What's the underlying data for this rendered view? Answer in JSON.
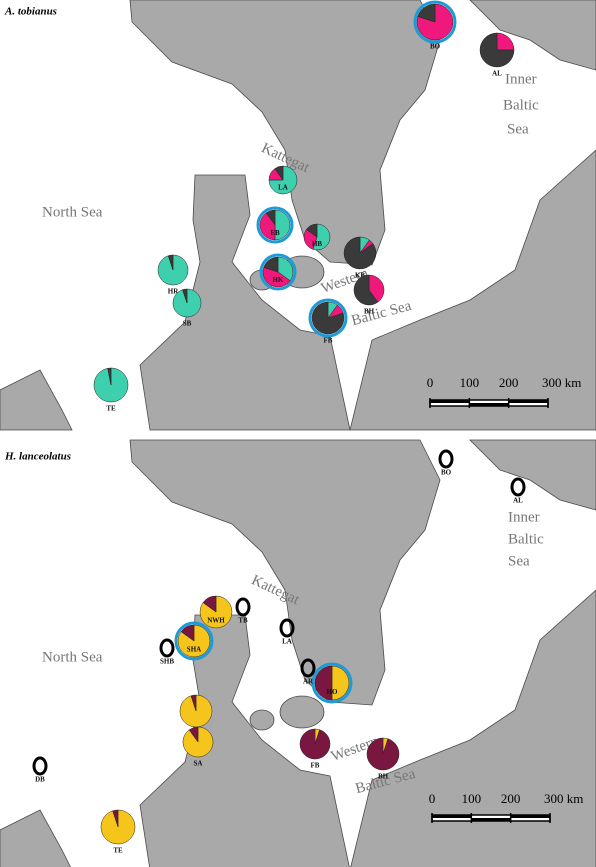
{
  "panels": [
    {
      "species": "A. tobianus",
      "colors": [
        "#3ecfae",
        "#f0187c",
        "#3a3a3a"
      ],
      "ring_color": "#1e9bd7",
      "labels": {
        "north_sea": "North Sea",
        "kattegat": "Kattegat",
        "inner": "Inner",
        "baltic": "Baltic",
        "sea": "Sea",
        "western": "Western",
        "baltic_sea": "Baltic Sea"
      },
      "scale_ticks": [
        0,
        100,
        200,
        {
          "value": 300,
          "label": "300 km"
        }
      ],
      "sites": [
        {
          "code": "BO",
          "values": [
            0,
            80,
            20
          ],
          "highlighted": true
        },
        {
          "code": "AL",
          "values": [
            0,
            25,
            75
          ],
          "highlighted": false
        },
        {
          "code": "LA",
          "values": [
            75,
            15,
            10
          ],
          "highlighted": false
        },
        {
          "code": "EB",
          "values": [
            50,
            40,
            10
          ],
          "highlighted": true
        },
        {
          "code": "HB",
          "values": [
            55,
            30,
            15
          ],
          "highlighted": false
        },
        {
          "code": "KB",
          "values": [
            10,
            5,
            85
          ],
          "highlighted": false
        },
        {
          "code": "HK",
          "values": [
            35,
            45,
            20
          ],
          "highlighted": true
        },
        {
          "code": "BH",
          "values": [
            0,
            40,
            60
          ],
          "highlighted": false
        },
        {
          "code": "FB",
          "values": [
            10,
            10,
            80
          ],
          "highlighted": true
        },
        {
          "code": "HR",
          "values": [
            95,
            0,
            5
          ],
          "highlighted": false
        },
        {
          "code": "SB",
          "values": [
            95,
            0,
            5
          ],
          "highlighted": false
        },
        {
          "code": "TE",
          "values": [
            97,
            0,
            3
          ],
          "highlighted": false
        }
      ],
      "empty_sites": []
    },
    {
      "species": "H. lanceolatus",
      "colors": [
        "#f6c51c",
        "#7a1740"
      ],
      "ring_color": "#1e9bd7",
      "labels": {
        "north_sea": "North Sea",
        "kattegat": "Kattegat",
        "inner": "Inner",
        "baltic": "Baltic",
        "sea": "Sea",
        "western": "Western",
        "baltic_sea": "Baltic Sea"
      },
      "scale_ticks": [
        0,
        100,
        200,
        {
          "value": 300,
          "label": "300 km"
        }
      ],
      "sites": [
        {
          "code": "NWH",
          "values": [
            85,
            15
          ],
          "highlighted": false
        },
        {
          "code": "SHA",
          "values": [
            85,
            15
          ],
          "highlighted": true
        },
        {
          "code": "HO",
          "values": [
            50,
            50
          ],
          "highlighted": true
        },
        {
          "code": "FB",
          "values": [
            5,
            95
          ],
          "highlighted": false
        },
        {
          "code": "BH",
          "values": [
            5,
            95
          ],
          "highlighted": false
        },
        {
          "code": "HR",
          "values": [
            95,
            5
          ],
          "highlighted": false
        },
        {
          "code": "SA",
          "values": [
            90,
            10
          ],
          "highlighted": false
        },
        {
          "code": "TE",
          "values": [
            95,
            5
          ],
          "highlighted": false
        }
      ],
      "empty_sites": [
        "TB",
        "BO",
        "AL",
        "LA",
        "SHB",
        "AR",
        "DB"
      ]
    }
  ]
}
